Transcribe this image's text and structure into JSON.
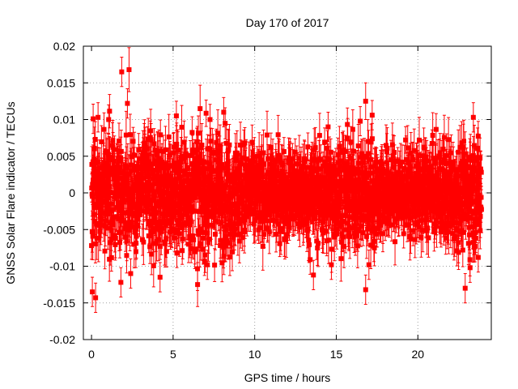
{
  "chart_data": {
    "type": "scatter",
    "title": "Day 170 of 2017",
    "xlabel": "GPS time / hours",
    "ylabel": "GNSS Solar Flare indicator / TECUs",
    "xlim": [
      -0.5,
      24.5
    ],
    "ylim": [
      -0.02,
      0.02
    ],
    "xticks": [
      0,
      5,
      10,
      15,
      20
    ],
    "xtick_labels": [
      "0",
      "5",
      "10",
      "15",
      "20"
    ],
    "yticks": [
      -0.02,
      -0.015,
      -0.01,
      -0.005,
      0,
      0.005,
      0.01,
      0.015,
      0.02
    ],
    "ytick_labels": [
      "-0.02",
      "-0.015",
      "-0.01",
      "-0.005",
      "0",
      "0.005",
      "0.01",
      "0.015",
      "0.02"
    ],
    "grid": true,
    "error_bars": true,
    "marker": "square",
    "color": "#ff0000",
    "notable_points": [
      {
        "x": 0.05,
        "y": -0.0135,
        "err": 0.002
      },
      {
        "x": 0.25,
        "y": -0.0143,
        "err": 0.002
      },
      {
        "x": 0.1,
        "y": 0.0101,
        "err": 0.002
      },
      {
        "x": 0.4,
        "y": 0.0103,
        "err": 0.002
      },
      {
        "x": 1.85,
        "y": 0.0165,
        "err": 0.002
      },
      {
        "x": 2.3,
        "y": 0.0168,
        "err": 0.003
      },
      {
        "x": 2.2,
        "y": 0.0122,
        "err": 0.002
      },
      {
        "x": 1.05,
        "y": 0.01,
        "err": 0.002
      },
      {
        "x": 1.8,
        "y": -0.0122,
        "err": 0.002
      },
      {
        "x": 2.4,
        "y": -0.011,
        "err": 0.002
      },
      {
        "x": 4.2,
        "y": -0.0115,
        "err": 0.002
      },
      {
        "x": 6.5,
        "y": -0.0125,
        "err": 0.003
      },
      {
        "x": 7.1,
        "y": -0.0098,
        "err": 0.002
      },
      {
        "x": 8.1,
        "y": 0.011,
        "err": 0.002
      },
      {
        "x": 5.2,
        "y": 0.0105,
        "err": 0.002
      },
      {
        "x": 13.4,
        "y": -0.0091,
        "err": 0.002
      },
      {
        "x": 13.6,
        "y": -0.0112,
        "err": 0.002
      },
      {
        "x": 14.5,
        "y": 0.009,
        "err": 0.002
      },
      {
        "x": 14.7,
        "y": -0.0098,
        "err": 0.002
      },
      {
        "x": 16.8,
        "y": 0.0125,
        "err": 0.0025
      },
      {
        "x": 17.2,
        "y": 0.0106,
        "err": 0.002
      },
      {
        "x": 16.8,
        "y": -0.0132,
        "err": 0.002
      },
      {
        "x": 17.0,
        "y": -0.0098,
        "err": 0.002
      },
      {
        "x": 23.2,
        "y": -0.0102,
        "err": 0.002
      },
      {
        "x": 23.4,
        "y": 0.0103,
        "err": 0.002
      },
      {
        "x": 22.9,
        "y": -0.013,
        "err": 0.002
      },
      {
        "x": 23.7,
        "y": -0.0088,
        "err": 0.002
      }
    ],
    "bulk_series": {
      "x_start": 0.0,
      "x_end": 23.9,
      "count": 2400,
      "typical_spread": 0.004,
      "typical_err": 0.0025
    }
  }
}
